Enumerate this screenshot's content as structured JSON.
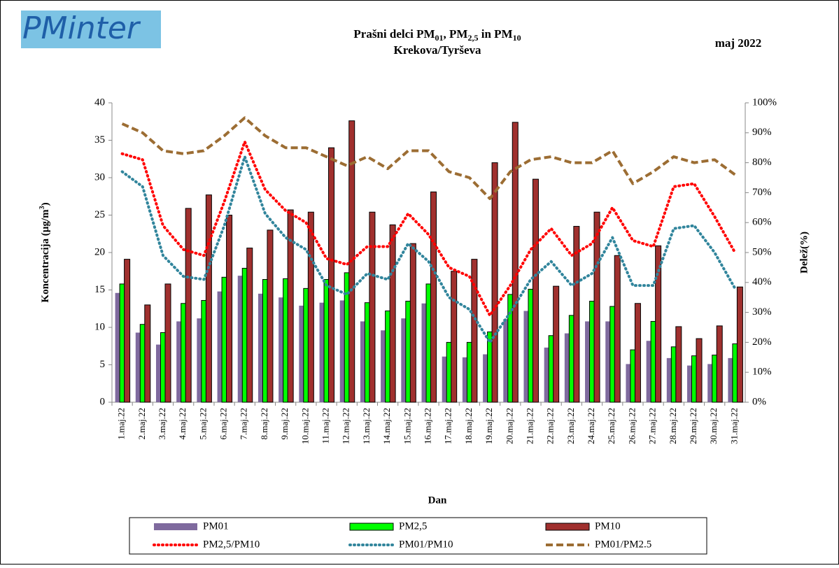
{
  "logo": "PMinter",
  "chart_data": {
    "type": "bar",
    "title": [
      "Prašni delci PM",
      "01",
      ", PM",
      "2,5",
      " in PM",
      "10"
    ],
    "subtitle": "Krekova/Tyrševa",
    "period": "maj 2022",
    "x_label": "Dan",
    "y_label": [
      "Koncentracija  (µg/m",
      "3",
      ")"
    ],
    "y2_label": "Delež(%)",
    "categories": [
      "1.maj.22",
      "2.maj.22",
      "3.maj.22",
      "4.maj.22",
      "5.maj.22",
      "6.maj.22",
      "7.maj.22",
      "8.maj.22",
      "9.maj.22",
      "10.maj.22",
      "11.maj.22",
      "12.maj.22",
      "13.maj.22",
      "14.maj.22",
      "15.maj.22",
      "16.maj.22",
      "17.maj.22",
      "18.maj.22",
      "19.maj.22",
      "20.maj.22",
      "21.maj.22",
      "22.maj.22",
      "23.maj.22",
      "24.maj.22",
      "25.maj.22",
      "26.maj.22",
      "27.maj.22",
      "28.maj.22",
      "29.maj.22",
      "30.maj.22",
      "31.maj.22"
    ],
    "ylim": [
      0,
      40
    ],
    "yticks": [
      0,
      5,
      10,
      15,
      20,
      25,
      30,
      35,
      40
    ],
    "y2lim": [
      0,
      100
    ],
    "y2ticks": [
      {
        "value": 0,
        "label": "0%"
      },
      {
        "value": 10,
        "label": "10%"
      },
      {
        "value": 20,
        "label": "20%"
      },
      {
        "value": 30,
        "label": "30%"
      },
      {
        "value": 40,
        "label": "40%"
      },
      {
        "value": 50,
        "label": "50%"
      },
      {
        "value": 60,
        "label": "60%"
      },
      {
        "value": 70,
        "label": "70%"
      },
      {
        "value": 80,
        "label": "80%"
      },
      {
        "value": 90,
        "label": "90%"
      },
      {
        "value": 100,
        "label": "100%"
      }
    ],
    "grid": false,
    "series": [
      {
        "name": "PM01",
        "type": "bar",
        "color": "#7f6a9e",
        "values": [
          14.6,
          9.3,
          7.7,
          10.8,
          11.2,
          14.8,
          16.9,
          14.5,
          14.0,
          12.9,
          13.3,
          13.6,
          10.8,
          9.6,
          11.2,
          13.2,
          6.1,
          6.0,
          6.4,
          11.1,
          12.2,
          7.3,
          9.2,
          10.8,
          10.8,
          5.1,
          8.2,
          5.9,
          4.9,
          5.1,
          5.9
        ]
      },
      {
        "name": "PM2,5",
        "type": "bar",
        "color": "#00ff00",
        "values": [
          15.8,
          10.4,
          9.3,
          13.2,
          13.6,
          16.7,
          17.9,
          16.4,
          16.5,
          15.2,
          16.4,
          17.3,
          13.3,
          12.2,
          13.5,
          15.8,
          8.0,
          8.0,
          9.4,
          14.4,
          15.1,
          8.9,
          11.6,
          13.5,
          12.8,
          7.0,
          10.8,
          7.4,
          6.2,
          6.3,
          7.8
        ]
      },
      {
        "name": "PM10",
        "type": "bar",
        "color": "#a0302e",
        "values": [
          19.1,
          13.0,
          15.8,
          25.9,
          27.7,
          25.0,
          20.6,
          23.0,
          25.7,
          25.4,
          34.0,
          37.6,
          25.4,
          23.7,
          21.2,
          28.1,
          17.5,
          19.1,
          32.0,
          37.4,
          29.8,
          15.5,
          23.5,
          25.4,
          19.6,
          13.2,
          20.9,
          10.1,
          8.5,
          10.2,
          15.4
        ]
      },
      {
        "name": "PM2,5/PM10",
        "type": "line",
        "axis": "y2",
        "style": "dotted",
        "color": "#ff0000",
        "values": [
          83,
          81,
          59,
          51,
          49,
          67,
          87,
          71,
          64,
          60,
          48,
          46,
          52,
          52,
          63,
          56,
          45,
          42,
          29,
          39,
          51,
          58,
          49,
          53,
          65,
          54,
          52,
          72,
          73,
          62,
          50
        ]
      },
      {
        "name": "PM01/PM10",
        "type": "line",
        "axis": "y2",
        "style": "dotted",
        "color": "#31859c",
        "values": [
          77,
          72,
          49,
          42,
          41,
          59,
          82,
          63,
          55,
          51,
          39,
          36,
          43,
          41,
          53,
          47,
          35,
          31,
          20,
          30,
          41,
          47,
          39,
          43,
          55,
          39,
          39,
          58,
          59,
          50,
          38
        ]
      },
      {
        "name": "PM01/PM2.5",
        "type": "line",
        "axis": "y2",
        "style": "dashed",
        "color": "#9c6d33",
        "values": [
          93,
          90,
          84,
          83,
          84,
          89,
          95,
          89,
          85,
          85,
          82,
          79,
          82,
          78,
          84,
          84,
          77,
          75,
          68,
          77,
          81,
          82,
          80,
          80,
          84,
          73,
          77,
          82,
          80,
          81,
          76
        ]
      }
    ]
  }
}
